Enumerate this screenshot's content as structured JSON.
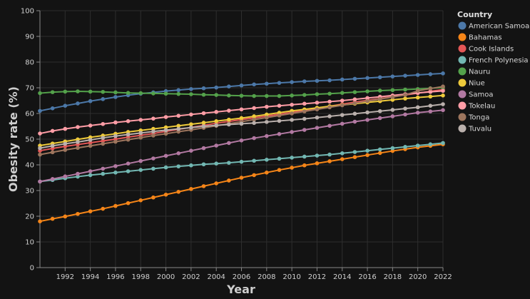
{
  "chart_data": {
    "type": "line",
    "title": "",
    "xlabel": "Year",
    "ylabel": "Obesity rate (%)",
    "xlim": [
      1990,
      2022
    ],
    "ylim": [
      0,
      100
    ],
    "x_ticks": [
      1992,
      1994,
      1996,
      1998,
      2000,
      2002,
      2004,
      2006,
      2008,
      2010,
      2012,
      2014,
      2016,
      2018,
      2020,
      2022
    ],
    "y_ticks": [
      0,
      10,
      20,
      30,
      40,
      50,
      60,
      70,
      80,
      90,
      100
    ],
    "grid": true,
    "legend_title": "Country",
    "legend_position": "right",
    "x": [
      1990,
      1991,
      1992,
      1993,
      1994,
      1995,
      1996,
      1997,
      1998,
      1999,
      2000,
      2001,
      2002,
      2003,
      2004,
      2005,
      2006,
      2007,
      2008,
      2009,
      2010,
      2011,
      2012,
      2013,
      2014,
      2015,
      2016,
      2017,
      2018,
      2019,
      2020,
      2021,
      2022
    ],
    "series": [
      {
        "name": "American Samoa",
        "color": "#4c78a8",
        "values": [
          61.0,
          62.0,
          63.0,
          63.9,
          64.8,
          65.6,
          66.4,
          67.1,
          67.7,
          68.2,
          68.7,
          69.1,
          69.5,
          69.8,
          70.1,
          70.5,
          70.9,
          71.3,
          71.6,
          71.9,
          72.2,
          72.5,
          72.7,
          72.9,
          73.2,
          73.5,
          73.8,
          74.1,
          74.4,
          74.7,
          75.0,
          75.3,
          75.6
        ]
      },
      {
        "name": "Bahamas",
        "color": "#f58518",
        "values": [
          18.0,
          19.0,
          19.9,
          20.9,
          21.9,
          22.9,
          24.0,
          25.1,
          26.2,
          27.3,
          28.4,
          29.5,
          30.6,
          31.7,
          32.8,
          33.9,
          35.0,
          36.0,
          37.0,
          38.0,
          38.9,
          39.8,
          40.6,
          41.4,
          42.2,
          43.0,
          43.8,
          44.6,
          45.4,
          46.1,
          46.8,
          47.4,
          48.0
        ]
      },
      {
        "name": "Cook Islands",
        "color": "#e45756",
        "values": [
          45.5,
          46.4,
          47.2,
          47.9,
          48.6,
          49.3,
          50.0,
          50.8,
          51.5,
          52.2,
          53.0,
          53.8,
          54.6,
          55.4,
          56.2,
          56.9,
          57.6,
          58.3,
          59.0,
          59.7,
          60.4,
          61.2,
          62.0,
          62.8,
          63.6,
          64.4,
          65.1,
          65.8,
          66.5,
          67.2,
          67.9,
          68.6,
          69.3
        ]
      },
      {
        "name": "French Polynesia",
        "color": "#72b7b2",
        "values": [
          33.5,
          34.1,
          34.8,
          35.4,
          36.0,
          36.5,
          37.0,
          37.5,
          38.0,
          38.5,
          39.0,
          39.4,
          39.8,
          40.2,
          40.5,
          40.8,
          41.2,
          41.6,
          42.0,
          42.4,
          42.8,
          43.2,
          43.6,
          44.0,
          44.5,
          45.0,
          45.5,
          46.0,
          46.5,
          47.0,
          47.5,
          48.0,
          48.5
        ]
      },
      {
        "name": "Nauru",
        "color": "#54a24b",
        "values": [
          67.9,
          68.3,
          68.5,
          68.6,
          68.5,
          68.4,
          68.2,
          68.0,
          67.9,
          67.8,
          67.7,
          67.6,
          67.5,
          67.3,
          67.2,
          67.0,
          66.9,
          66.8,
          66.8,
          66.8,
          67.0,
          67.2,
          67.5,
          67.7,
          68.0,
          68.3,
          68.6,
          68.9,
          69.1,
          69.3,
          69.5,
          69.8,
          70.1
        ]
      },
      {
        "name": "Niue",
        "color": "#eeca3b",
        "values": [
          47.5,
          48.3,
          49.1,
          49.9,
          50.7,
          51.4,
          52.1,
          52.8,
          53.4,
          54.0,
          54.6,
          55.2,
          55.8,
          56.4,
          57.0,
          57.6,
          58.2,
          58.9,
          59.6,
          60.3,
          61.0,
          61.6,
          62.2,
          62.8,
          63.3,
          63.8,
          64.3,
          64.8,
          65.3,
          65.8,
          66.2,
          66.6,
          67.0
        ]
      },
      {
        "name": "Samoa",
        "color": "#b279a2",
        "values": [
          33.5,
          34.5,
          35.5,
          36.5,
          37.5,
          38.5,
          39.5,
          40.5,
          41.5,
          42.5,
          43.5,
          44.5,
          45.5,
          46.5,
          47.5,
          48.5,
          49.5,
          50.4,
          51.2,
          52.0,
          52.8,
          53.6,
          54.4,
          55.2,
          56.0,
          56.8,
          57.5,
          58.2,
          58.9,
          59.6,
          60.3,
          60.8,
          61.3
        ]
      },
      {
        "name": "Tokelau",
        "color": "#ff9da6",
        "values": [
          52.2,
          53.2,
          54.0,
          54.7,
          55.3,
          55.9,
          56.5,
          57.0,
          57.5,
          58.0,
          58.6,
          59.1,
          59.6,
          60.1,
          60.6,
          61.1,
          61.6,
          62.1,
          62.6,
          63.0,
          63.4,
          63.8,
          64.2,
          64.6,
          65.0,
          65.5,
          66.0,
          66.5,
          67.0,
          67.5,
          68.0,
          68.4,
          68.8
        ]
      },
      {
        "name": "Tonga",
        "color": "#9d755d",
        "values": [
          44.0,
          44.9,
          45.8,
          46.6,
          47.4,
          48.2,
          49.0,
          49.8,
          50.6,
          51.4,
          52.1,
          52.9,
          53.6,
          54.4,
          55.2,
          56.0,
          56.8,
          57.6,
          58.4,
          59.2,
          60.0,
          60.8,
          61.6,
          62.4,
          63.2,
          64.0,
          64.8,
          65.6,
          66.4,
          67.2,
          68.8,
          69.7,
          70.5
        ]
      },
      {
        "name": "Tuvalu",
        "color": "#bab0ac",
        "values": [
          46.5,
          47.4,
          48.2,
          48.9,
          49.7,
          50.5,
          51.2,
          51.8,
          52.4,
          53.0,
          53.5,
          54.0,
          54.5,
          55.0,
          55.4,
          55.7,
          56.0,
          56.3,
          56.7,
          57.1,
          57.5,
          57.9,
          58.4,
          58.9,
          59.4,
          59.9,
          60.4,
          60.9,
          61.4,
          61.9,
          62.4,
          63.0,
          63.6
        ]
      }
    ]
  }
}
